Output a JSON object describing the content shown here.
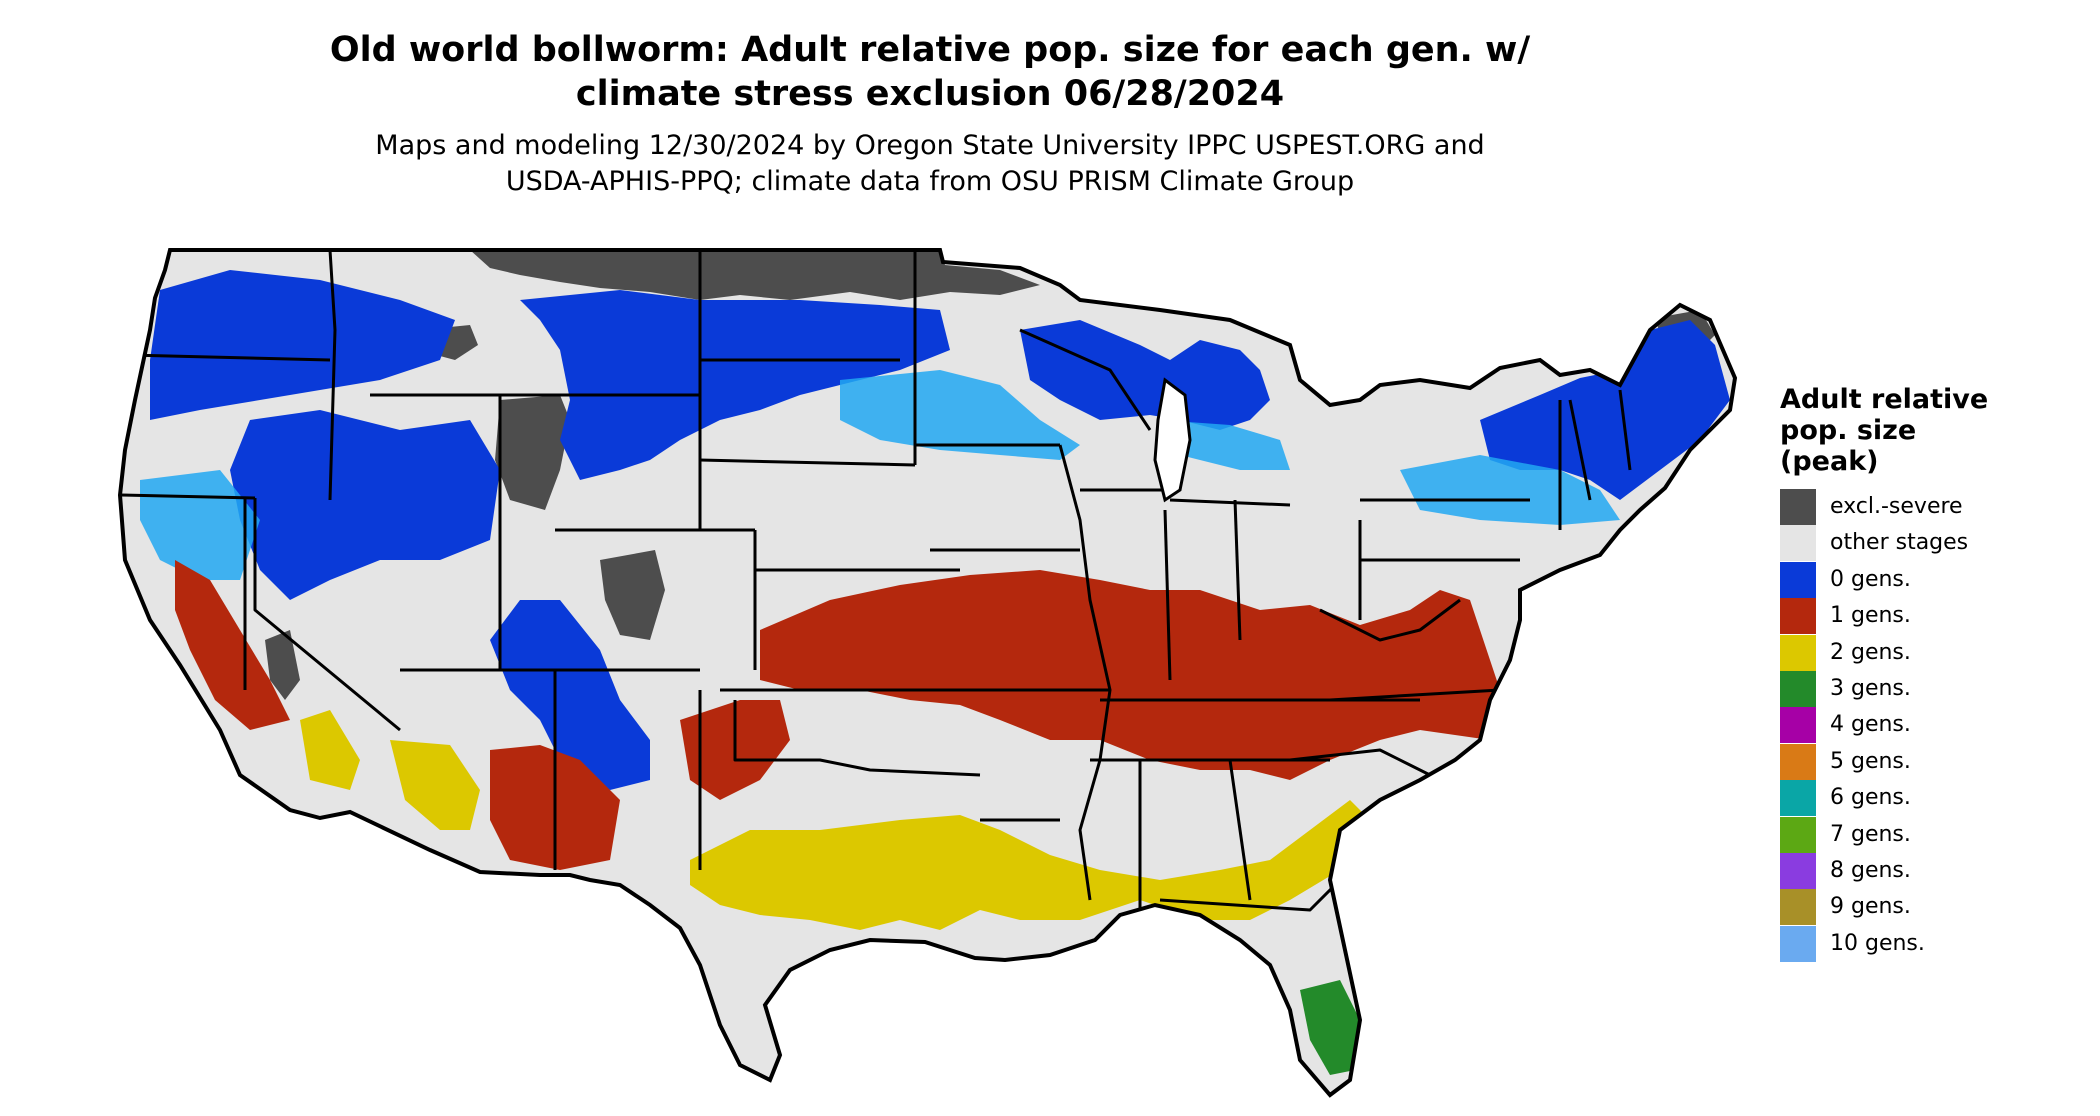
{
  "title_line1": "Old world bollworm: Adult relative pop. size for each gen. w/",
  "title_line2": "climate stress exclusion 06/28/2024",
  "subtitle_line1": "Maps and modeling 12/30/2024 by Oregon State University IPPC USPEST.ORG and",
  "subtitle_line2": "USDA-APHIS-PPQ; climate data from OSU PRISM Climate Group",
  "legend": {
    "title": [
      "Adult relative",
      "pop. size",
      "(peak)"
    ],
    "items": [
      {
        "label": "excl.-severe",
        "color": "#4d4d4d"
      },
      {
        "label": "other stages",
        "color": "#e5e5e5"
      },
      {
        "label": "0 gens.",
        "color": "#0a3ad8"
      },
      {
        "label": "1 gens.",
        "color": "#b4280d"
      },
      {
        "label": "2 gens.",
        "color": "#dcc800"
      },
      {
        "label": "3 gens.",
        "color": "#238a2a"
      },
      {
        "label": "4 gens.",
        "color": "#a600a6"
      },
      {
        "label": "5 gens.",
        "color": "#d97a16"
      },
      {
        "label": "6 gens.",
        "color": "#0aa6a6"
      },
      {
        "label": "7 gens.",
        "color": "#5ca814"
      },
      {
        "label": "8 gens.",
        "color": "#8a3ce0"
      },
      {
        "label": "9 gens.",
        "color": "#a89028"
      },
      {
        "label": "10 gens.",
        "color": "#6aaaf0"
      }
    ]
  },
  "map_colors": {
    "land": "#e5e5e5",
    "boundary": "#000000",
    "light_blue": "#22a8f2"
  }
}
